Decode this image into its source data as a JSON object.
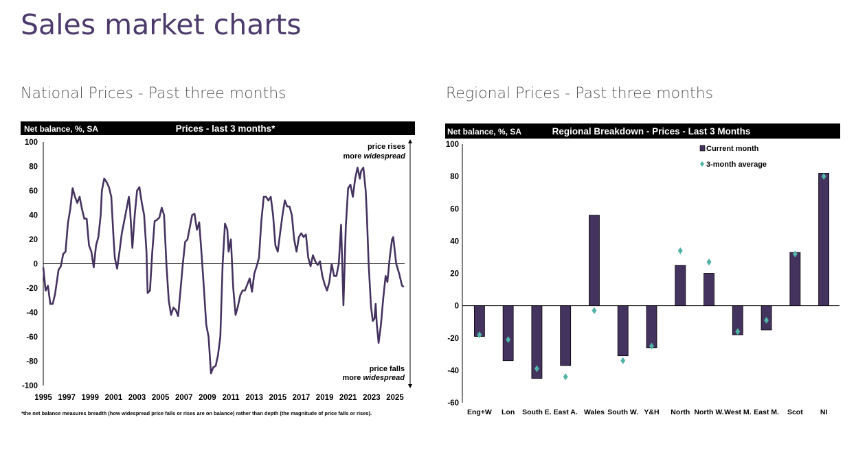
{
  "page_title": "Sales market charts",
  "sections": [
    {
      "heading": "National Prices - Past three months"
    },
    {
      "heading": "Regional Prices - Past three months"
    }
  ],
  "colors": {
    "line": "#45335f",
    "bar": "#45335f",
    "marker": "#4fb3a5",
    "header_bg": "#000000"
  },
  "chart_data": [
    {
      "type": "line",
      "title": "Prices - last 3 months*",
      "ylabel": "Net balance, %, SA",
      "ylim": [
        -100,
        100
      ],
      "yticks": [
        "100",
        "80",
        "60",
        "40",
        "20",
        "0",
        "-20",
        "-40",
        "-60",
        "-80",
        "-100"
      ],
      "xlim": [
        1995,
        2025.8
      ],
      "xticks": [
        "1995",
        "1997",
        "1999",
        "2001",
        "2003",
        "2005",
        "2007",
        "2009",
        "2011",
        "2013",
        "2015",
        "2017",
        "2019",
        "2021",
        "2023",
        "2025"
      ],
      "annotation_top": {
        "line1": "price rises",
        "line2a": "more ",
        "line2b": "widespread"
      },
      "annotation_bottom": {
        "line1": "price falls",
        "line2a": "more ",
        "line2b": "widespread"
      },
      "footnote": "*the net balance measures breadth (how widespread price falls or rises are on balance)  rather than depth (the magnitude of price falls or rises).",
      "grid": false,
      "x": [
        1995.0,
        1995.2,
        1995.4,
        1995.6,
        1995.8,
        1996.0,
        1996.3,
        1996.5,
        1996.7,
        1996.9,
        1997.1,
        1997.3,
        1997.5,
        1997.7,
        1997.9,
        1998.1,
        1998.3,
        1998.5,
        1998.7,
        1998.9,
        1999.1,
        1999.3,
        1999.5,
        1999.7,
        1999.9,
        2000.0,
        2000.2,
        2000.4,
        2000.6,
        2000.8,
        2001.0,
        2001.1,
        2001.3,
        2001.5,
        2001.7,
        2001.9,
        2002.1,
        2002.3,
        2002.4,
        2002.6,
        2002.8,
        2003.0,
        2003.2,
        2003.4,
        2003.6,
        2003.8,
        2003.9,
        2004.1,
        2004.3,
        2004.5,
        2004.7,
        2004.9,
        2005.1,
        2005.3,
        2005.5,
        2005.7,
        2005.9,
        2006.1,
        2006.3,
        2006.5,
        2006.7,
        2006.9,
        2007.1,
        2007.3,
        2007.5,
        2007.7,
        2007.9,
        2008.1,
        2008.3,
        2008.5,
        2008.7,
        2008.9,
        2009.1,
        2009.3,
        2009.5,
        2009.7,
        2009.9,
        2010.1,
        2010.3,
        2010.5,
        2010.7,
        2010.8,
        2011.0,
        2011.2,
        2011.4,
        2011.6,
        2011.8,
        2012.0,
        2012.2,
        2012.4,
        2012.6,
        2012.8,
        2013.0,
        2013.2,
        2013.4,
        2013.6,
        2013.8,
        2014.0,
        2014.2,
        2014.4,
        2014.6,
        2014.8,
        2015.0,
        2015.2,
        2015.4,
        2015.6,
        2015.8,
        2016.0,
        2016.2,
        2016.4,
        2016.6,
        2016.8,
        2017.0,
        2017.2,
        2017.4,
        2017.6,
        2017.8,
        2018.0,
        2018.2,
        2018.4,
        2018.6,
        2018.8,
        2019.0,
        2019.2,
        2019.4,
        2019.6,
        2019.8,
        2020.0,
        2020.2,
        2020.4,
        2020.6,
        2020.8,
        2021.0,
        2021.2,
        2021.4,
        2021.6,
        2021.8,
        2022.0,
        2022.1,
        2022.3,
        2022.5,
        2022.6,
        2022.75,
        2022.95,
        2023.1,
        2023.25,
        2023.35,
        2023.45,
        2023.6,
        2023.8,
        2024.0,
        2024.2,
        2024.35,
        2024.55,
        2024.75,
        2024.85,
        2025.1,
        2025.35,
        2025.6,
        2025.75
      ],
      "y": [
        -3,
        -22,
        -18,
        -33,
        -33,
        -25,
        -5,
        -2,
        8,
        10,
        33,
        45,
        62,
        55,
        50,
        55,
        45,
        37,
        37,
        15,
        10,
        -3,
        15,
        22,
        40,
        60,
        70,
        67,
        63,
        55,
        20,
        5,
        -4,
        10,
        25,
        35,
        45,
        55,
        45,
        13,
        40,
        60,
        63,
        50,
        40,
        10,
        -24,
        -22,
        10,
        35,
        36,
        38,
        46,
        40,
        0,
        -30,
        -42,
        -36,
        -38,
        -43,
        -22,
        0,
        18,
        20,
        30,
        40,
        41,
        28,
        34,
        8,
        -20,
        -50,
        -60,
        -90,
        -85,
        -84,
        -75,
        -60,
        0,
        33,
        28,
        10,
        20,
        -20,
        -42,
        -35,
        -26,
        -22,
        -22,
        -17,
        -12,
        -23,
        -8,
        -2,
        5,
        35,
        55,
        55,
        52,
        55,
        40,
        15,
        10,
        25,
        40,
        52,
        47,
        47,
        40,
        20,
        10,
        22,
        25,
        22,
        24,
        5,
        -2,
        7,
        2,
        -1,
        2,
        -10,
        -17,
        -22,
        -15,
        0,
        -10,
        -10,
        0,
        32,
        -34,
        30,
        62,
        65,
        55,
        70,
        79,
        70,
        76,
        79,
        60,
        40,
        0,
        -35,
        -47,
        -45,
        -33,
        -50,
        -65,
        -50,
        -28,
        -10,
        -15,
        5,
        20,
        22,
        0,
        -8,
        -18,
        -19
      ]
    },
    {
      "type": "bar",
      "title": "Regional Breakdown - Prices - Last 3 Months",
      "ylabel": "Net balance, %, SA",
      "ylim": [
        -60,
        100
      ],
      "yticks": [
        "100",
        "80",
        "60",
        "40",
        "20",
        "0",
        "-20",
        "-40",
        "-60"
      ],
      "categories": [
        "Eng+W",
        "Lon",
        "South E.",
        "East A.",
        "Wales",
        "South W.",
        "Y&H",
        "North",
        "North W.",
        "West M.",
        "East M.",
        "Scot",
        "NI"
      ],
      "legend_position": "top-right",
      "series": [
        {
          "name": "Current month",
          "style": "bar",
          "values": [
            -19,
            -34,
            -45,
            -37,
            56,
            -31,
            -26,
            25,
            20,
            -18,
            -15,
            33,
            82
          ]
        },
        {
          "name": "3-month average",
          "style": "diamond",
          "values": [
            -18,
            -21,
            -39,
            -44,
            -3,
            -34,
            -25,
            34,
            27,
            -16,
            -9,
            32,
            80
          ]
        }
      ]
    }
  ]
}
